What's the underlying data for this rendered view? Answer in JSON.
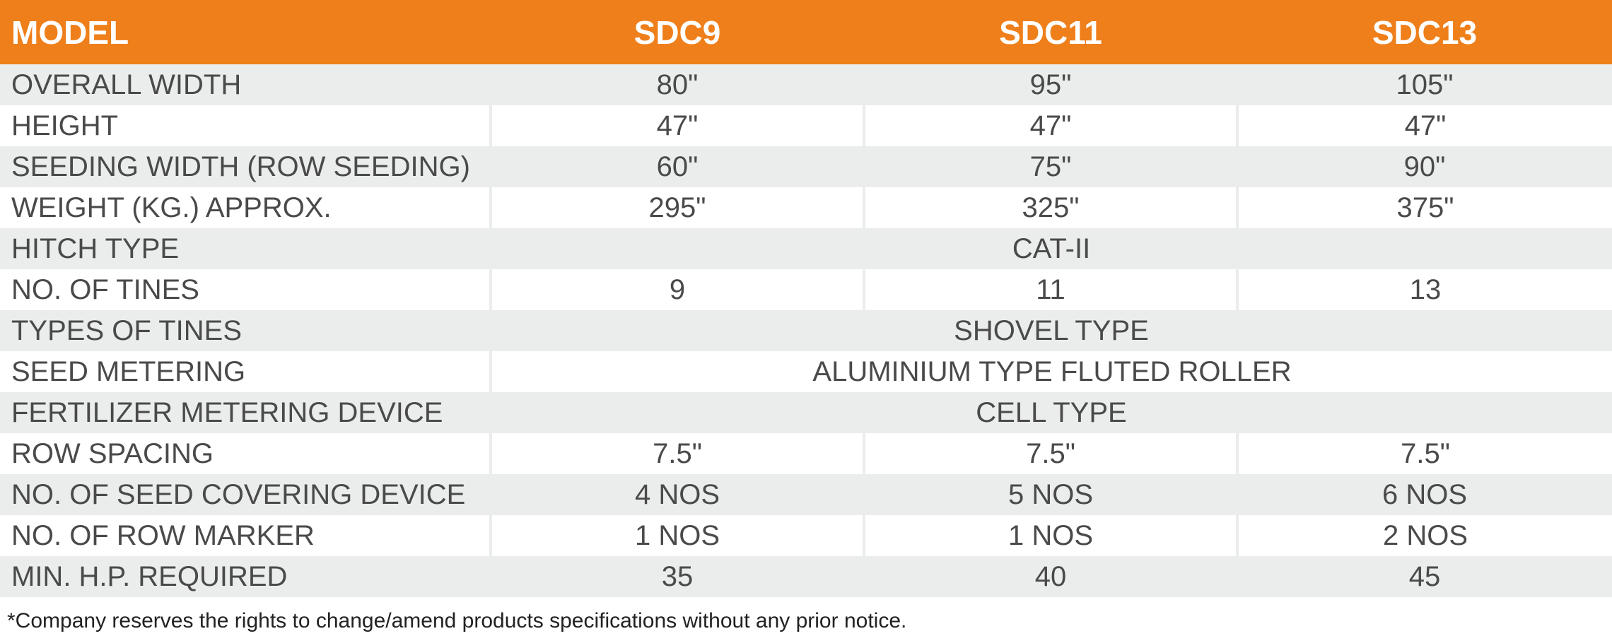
{
  "table": {
    "header": {
      "label": "MODEL",
      "models": [
        "SDC9",
        "SDC11",
        "SDC13"
      ]
    },
    "rows": [
      {
        "label": "OVERALL WIDTH",
        "values": [
          "80\"",
          "95\"",
          "105\""
        ]
      },
      {
        "label": "HEIGHT",
        "values": [
          "47\"",
          "47\"",
          "47\""
        ]
      },
      {
        "label": "SEEDING WIDTH (ROW SEEDING)",
        "values": [
          "60\"",
          "75\"",
          "90\""
        ]
      },
      {
        "label": "WEIGHT (KG.) APPROX.",
        "values": [
          "295\"",
          "325\"",
          "375\""
        ]
      },
      {
        "label": "HITCH TYPE",
        "merged": "CAT-II"
      },
      {
        "label": "NO. OF TINES",
        "values": [
          "9",
          "11",
          "13"
        ]
      },
      {
        "label": "TYPES OF TINES",
        "merged": "SHOVEL TYPE"
      },
      {
        "label": "SEED METERING",
        "merged": "ALUMINIUM TYPE FLUTED ROLLER"
      },
      {
        "label": "FERTILIZER METERING DEVICE",
        "merged": "CELL TYPE"
      },
      {
        "label": "ROW SPACING",
        "values": [
          "7.5\"",
          "7.5\"",
          "7.5\""
        ]
      },
      {
        "label": "NO. OF SEED COVERING DEVICE",
        "values": [
          "4 NOS",
          "5 NOS",
          "6 NOS"
        ]
      },
      {
        "label": "NO. OF ROW MARKER",
        "values": [
          "1 NOS",
          "1 NOS",
          "2 NOS"
        ]
      },
      {
        "label": "MIN. H.P. REQUIRED",
        "values": [
          "35",
          "40",
          "45"
        ]
      }
    ]
  },
  "footnote": "*Company reserves the rights to change/amend products specifications without any prior notice.",
  "colors": {
    "header_bg": "#ef7f1a",
    "header_text": "#ffffff",
    "stripe_bg": "#ebecec",
    "body_text": "#4a4a4a"
  }
}
